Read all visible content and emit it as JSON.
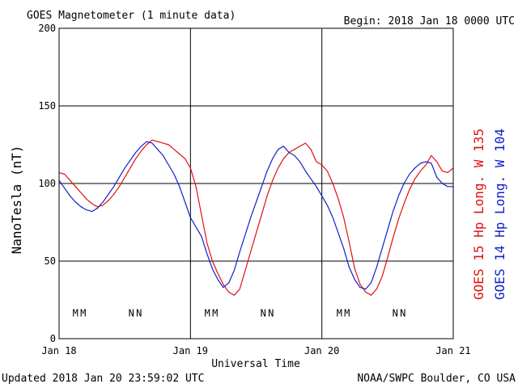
{
  "header": {
    "title": "GOES Magnetometer (1 minute data)",
    "begin": "Begin:  2018 Jan 18 0000 UTC"
  },
  "footer": {
    "updated": "Updated 2018 Jan 20 23:59:02 UTC",
    "credit": "NOAA/SWPC Boulder, CO USA"
  },
  "colors": {
    "goes15": "#e01010",
    "goes14": "#1020c8"
  },
  "chart_data": {
    "type": "line",
    "xlabel": "Universal Time",
    "ylabel": "NanoTesla (nT)",
    "xlim": [
      0,
      72
    ],
    "ylim": [
      0,
      200
    ],
    "grid": true,
    "x_ticks": [
      {
        "v": 0,
        "label": "Jan 18"
      },
      {
        "v": 24,
        "label": "Jan 19"
      },
      {
        "v": 48,
        "label": "Jan 20"
      },
      {
        "v": 72,
        "label": "Jan 21"
      }
    ],
    "y_ticks": [
      0,
      50,
      100,
      150,
      200
    ],
    "series": [
      {
        "name": "GOES 15 Hp  Long. W 135",
        "color": "#e01010",
        "points": [
          [
            0,
            107
          ],
          [
            1,
            106
          ],
          [
            2,
            102
          ],
          [
            3,
            98
          ],
          [
            4,
            94
          ],
          [
            5,
            90
          ],
          [
            6,
            87
          ],
          [
            7,
            85
          ],
          [
            8,
            86
          ],
          [
            9,
            89
          ],
          [
            10,
            93
          ],
          [
            11,
            98
          ],
          [
            12,
            104
          ],
          [
            13,
            110
          ],
          [
            14,
            116
          ],
          [
            15,
            121
          ],
          [
            16,
            125
          ],
          [
            17,
            128
          ],
          [
            18,
            127
          ],
          [
            19,
            126
          ],
          [
            20,
            125
          ],
          [
            21,
            122
          ],
          [
            22,
            119
          ],
          [
            23,
            116
          ],
          [
            24,
            110
          ],
          [
            25,
            98
          ],
          [
            26,
            80
          ],
          [
            27,
            62
          ],
          [
            28,
            50
          ],
          [
            29,
            42
          ],
          [
            30,
            35
          ],
          [
            31,
            30
          ],
          [
            32,
            28
          ],
          [
            33,
            32
          ],
          [
            34,
            44
          ],
          [
            35,
            56
          ],
          [
            36,
            68
          ],
          [
            37,
            80
          ],
          [
            38,
            92
          ],
          [
            39,
            102
          ],
          [
            40,
            110
          ],
          [
            41,
            116
          ],
          [
            42,
            120
          ],
          [
            43,
            122
          ],
          [
            44,
            124
          ],
          [
            45,
            126
          ],
          [
            46,
            122
          ],
          [
            47,
            114
          ],
          [
            48,
            112
          ],
          [
            49,
            108
          ],
          [
            50,
            100
          ],
          [
            51,
            90
          ],
          [
            52,
            78
          ],
          [
            53,
            62
          ],
          [
            54,
            45
          ],
          [
            55,
            35
          ],
          [
            56,
            30
          ],
          [
            57,
            28
          ],
          [
            58,
            32
          ],
          [
            59,
            40
          ],
          [
            60,
            52
          ],
          [
            61,
            65
          ],
          [
            62,
            77
          ],
          [
            63,
            87
          ],
          [
            64,
            96
          ],
          [
            65,
            103
          ],
          [
            66,
            108
          ],
          [
            67,
            112
          ],
          [
            68,
            118
          ],
          [
            69,
            114
          ],
          [
            70,
            108
          ],
          [
            71,
            107
          ],
          [
            72,
            110
          ]
        ]
      },
      {
        "name": "GOES 14 Hp  Long. W 104",
        "color": "#1020c8",
        "points": [
          [
            0,
            102
          ],
          [
            1,
            97
          ],
          [
            2,
            92
          ],
          [
            3,
            88
          ],
          [
            4,
            85
          ],
          [
            5,
            83
          ],
          [
            6,
            82
          ],
          [
            7,
            84
          ],
          [
            8,
            88
          ],
          [
            9,
            93
          ],
          [
            10,
            98
          ],
          [
            11,
            104
          ],
          [
            12,
            110
          ],
          [
            13,
            115
          ],
          [
            14,
            120
          ],
          [
            15,
            124
          ],
          [
            16,
            127
          ],
          [
            17,
            126
          ],
          [
            18,
            122
          ],
          [
            19,
            118
          ],
          [
            20,
            112
          ],
          [
            21,
            106
          ],
          [
            22,
            98
          ],
          [
            23,
            88
          ],
          [
            24,
            78
          ],
          [
            25,
            72
          ],
          [
            26,
            66
          ],
          [
            27,
            55
          ],
          [
            28,
            45
          ],
          [
            29,
            38
          ],
          [
            30,
            33
          ],
          [
            31,
            36
          ],
          [
            32,
            44
          ],
          [
            33,
            56
          ],
          [
            34,
            67
          ],
          [
            35,
            78
          ],
          [
            36,
            88
          ],
          [
            37,
            98
          ],
          [
            38,
            108
          ],
          [
            39,
            116
          ],
          [
            40,
            122
          ],
          [
            41,
            124
          ],
          [
            42,
            120
          ],
          [
            43,
            118
          ],
          [
            44,
            114
          ],
          [
            45,
            108
          ],
          [
            46,
            103
          ],
          [
            47,
            98
          ],
          [
            48,
            92
          ],
          [
            49,
            86
          ],
          [
            50,
            78
          ],
          [
            51,
            68
          ],
          [
            52,
            58
          ],
          [
            53,
            46
          ],
          [
            54,
            38
          ],
          [
            55,
            33
          ],
          [
            56,
            32
          ],
          [
            57,
            36
          ],
          [
            58,
            46
          ],
          [
            59,
            58
          ],
          [
            60,
            70
          ],
          [
            61,
            82
          ],
          [
            62,
            92
          ],
          [
            63,
            100
          ],
          [
            64,
            106
          ],
          [
            65,
            110
          ],
          [
            66,
            113
          ],
          [
            67,
            114
          ],
          [
            68,
            113
          ],
          [
            69,
            104
          ],
          [
            70,
            100
          ],
          [
            71,
            98
          ],
          [
            72,
            98
          ]
        ]
      }
    ],
    "markers": [
      {
        "x": 3.0,
        "label": "M",
        "series": 1
      },
      {
        "x": 4.4,
        "label": "M",
        "series": 0
      },
      {
        "x": 13.2,
        "label": "N",
        "series": 1
      },
      {
        "x": 14.6,
        "label": "N",
        "series": 0
      },
      {
        "x": 27.1,
        "label": "M",
        "series": 1
      },
      {
        "x": 28.5,
        "label": "M",
        "series": 0
      },
      {
        "x": 37.3,
        "label": "N",
        "series": 1
      },
      {
        "x": 38.7,
        "label": "N",
        "series": 0
      },
      {
        "x": 51.2,
        "label": "M",
        "series": 1
      },
      {
        "x": 52.6,
        "label": "M",
        "series": 0
      },
      {
        "x": 61.4,
        "label": "N",
        "series": 1
      },
      {
        "x": 62.8,
        "label": "N",
        "series": 0
      }
    ],
    "marker_y": 17
  }
}
